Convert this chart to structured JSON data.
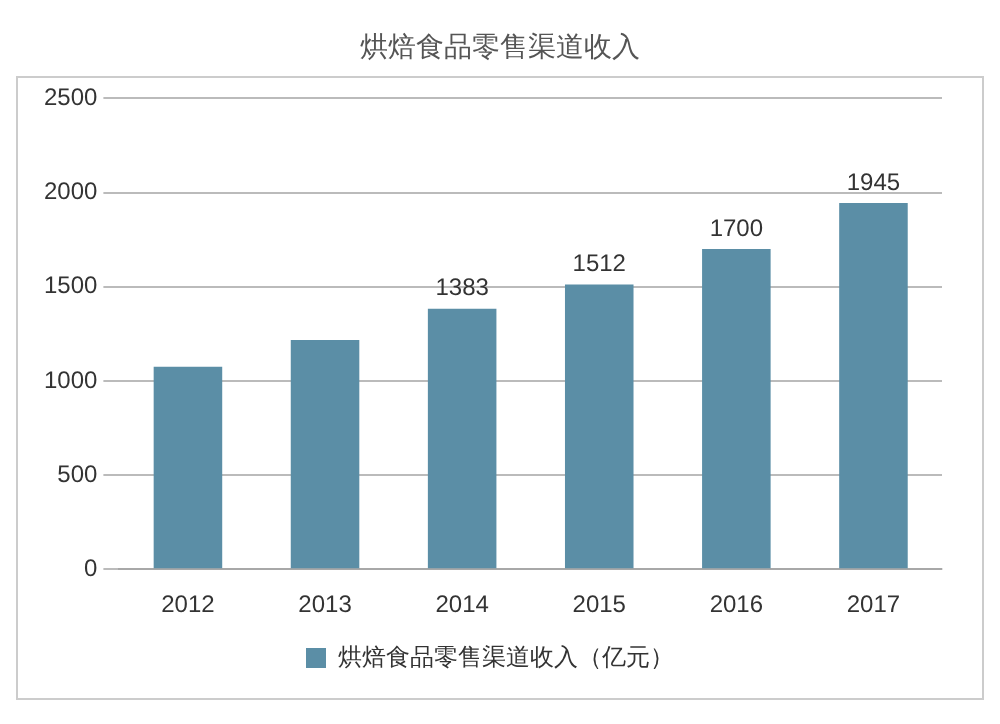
{
  "chart_data": {
    "type": "bar",
    "title": "烘焙食品零售渠道收入",
    "categories": [
      "2012",
      "2013",
      "2014",
      "2015",
      "2016",
      "2017"
    ],
    "series": [
      {
        "name": "烘焙食品零售渠道收入（亿元）",
        "color": "#5b8ea6",
        "values": [
          1075,
          1217,
          1383,
          1512,
          1700,
          1945
        ],
        "value_labels": [
          null,
          null,
          "1383",
          "1512",
          "1700",
          "1945"
        ]
      }
    ],
    "ylim": [
      0,
      2500
    ],
    "yticks": [
      0,
      500,
      1000,
      1500,
      2000,
      2500
    ],
    "grid": "y",
    "legend": "bottom"
  }
}
